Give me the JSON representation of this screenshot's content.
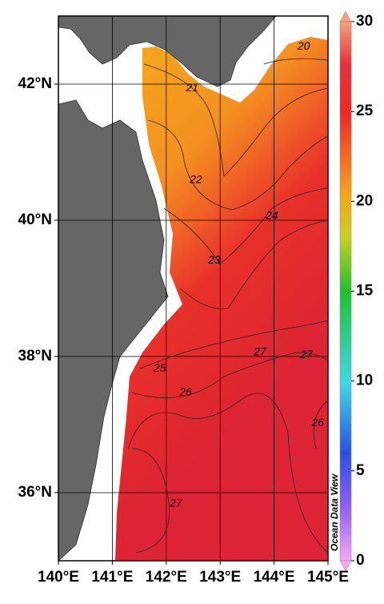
{
  "map": {
    "xlim": [
      140,
      145
    ],
    "ylim": [
      35,
      43
    ],
    "xticks": [
      {
        "value": 140,
        "label": "140°E"
      },
      {
        "value": 141,
        "label": "141°E"
      },
      {
        "value": 142,
        "label": "142°E"
      },
      {
        "value": 143,
        "label": "143°E"
      },
      {
        "value": 144,
        "label": "144°E"
      },
      {
        "value": 145,
        "label": "145°E"
      }
    ],
    "yticks": [
      {
        "value": 36,
        "label": "36°N"
      },
      {
        "value": 38,
        "label": "38°N"
      },
      {
        "value": 40,
        "label": "40°N"
      },
      {
        "value": 42,
        "label": "42°N"
      }
    ],
    "grid": true,
    "contour_labels": [
      {
        "label": 20,
        "lon": 144.55,
        "lat": 42.55
      },
      {
        "label": 21,
        "lon": 142.48,
        "lat": 41.94
      },
      {
        "label": 22,
        "lon": 142.55,
        "lat": 40.59
      },
      {
        "label": 24,
        "lon": 143.96,
        "lat": 40.06
      },
      {
        "label": 23,
        "lon": 142.89,
        "lat": 39.41
      },
      {
        "label": 25,
        "lon": 141.88,
        "lat": 37.82
      },
      {
        "label": 26,
        "lon": 142.36,
        "lat": 37.47
      },
      {
        "label": 27,
        "lon": 143.74,
        "lat": 38.06
      },
      {
        "label": 27,
        "lon": 144.6,
        "lat": 38.02
      },
      {
        "label": 26,
        "lon": 144.81,
        "lat": 37.02
      },
      {
        "label": 27,
        "lon": 142.18,
        "lat": 35.84
      }
    ],
    "watermark": "Ocean Data View",
    "colorbar": {
      "lim": [
        0,
        30
      ],
      "ticks": [
        0,
        5,
        10,
        15,
        20,
        25,
        30
      ]
    }
  }
}
